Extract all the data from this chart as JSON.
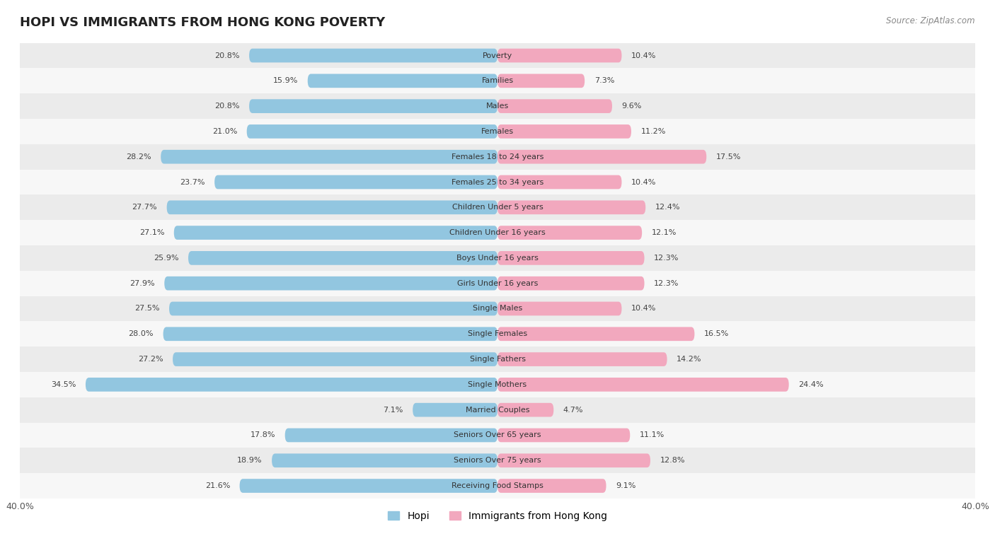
{
  "title": "HOPI VS IMMIGRANTS FROM HONG KONG POVERTY",
  "source": "Source: ZipAtlas.com",
  "categories": [
    "Poverty",
    "Families",
    "Males",
    "Females",
    "Females 18 to 24 years",
    "Females 25 to 34 years",
    "Children Under 5 years",
    "Children Under 16 years",
    "Boys Under 16 years",
    "Girls Under 16 years",
    "Single Males",
    "Single Females",
    "Single Fathers",
    "Single Mothers",
    "Married Couples",
    "Seniors Over 65 years",
    "Seniors Over 75 years",
    "Receiving Food Stamps"
  ],
  "hopi_values": [
    20.8,
    15.9,
    20.8,
    21.0,
    28.2,
    23.7,
    27.7,
    27.1,
    25.9,
    27.9,
    27.5,
    28.0,
    27.2,
    34.5,
    7.1,
    17.8,
    18.9,
    21.6
  ],
  "hk_values": [
    10.4,
    7.3,
    9.6,
    11.2,
    17.5,
    10.4,
    12.4,
    12.1,
    12.3,
    12.3,
    10.4,
    16.5,
    14.2,
    24.4,
    4.7,
    11.1,
    12.8,
    9.1
  ],
  "hopi_color": "#92C6E0",
  "hk_color": "#F2A8BE",
  "background_color": "#ffffff",
  "row_odd_color": "#ebebeb",
  "row_even_color": "#f7f7f7",
  "axis_limit": 40.0,
  "legend_hopi": "Hopi",
  "legend_hk": "Immigrants from Hong Kong",
  "bar_height": 0.55,
  "label_fontsize": 8.0,
  "cat_fontsize": 8.0,
  "title_fontsize": 13,
  "source_fontsize": 8.5
}
